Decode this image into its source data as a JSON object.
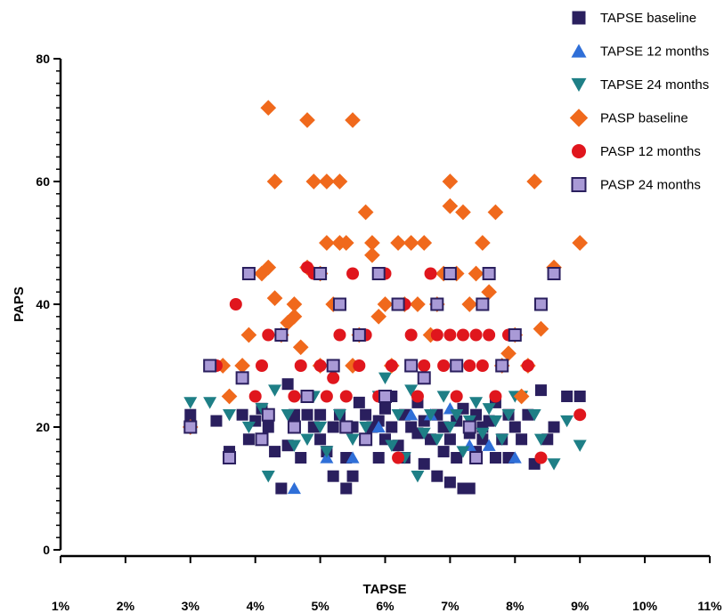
{
  "chart_data": {
    "type": "scatter",
    "title": "",
    "xlabel": "TAPSE",
    "ylabel": "PAPS",
    "xlim": [
      1,
      11
    ],
    "ylim": [
      0,
      80
    ],
    "x_tick_labels": [
      "1%",
      "2%",
      "3%",
      "4%",
      "5%",
      "6%",
      "7%",
      "8%",
      "9%",
      "10%",
      "11%"
    ],
    "y_tick_labels": [
      "0",
      "20",
      "40",
      "60",
      "80"
    ],
    "legend_position": "top-right",
    "grid": false,
    "series": [
      {
        "name": "TAPSE baseline",
        "marker": "square",
        "color": "#2a1f5e",
        "points": [
          [
            3.0,
            22
          ],
          [
            3.0,
            20
          ],
          [
            3.4,
            21
          ],
          [
            3.6,
            16
          ],
          [
            3.8,
            22
          ],
          [
            3.9,
            18
          ],
          [
            4.0,
            21
          ],
          [
            4.1,
            23
          ],
          [
            4.2,
            20
          ],
          [
            4.3,
            16
          ],
          [
            4.4,
            10
          ],
          [
            4.5,
            17
          ],
          [
            4.5,
            27
          ],
          [
            4.6,
            22
          ],
          [
            4.7,
            15
          ],
          [
            4.8,
            22
          ],
          [
            4.9,
            20
          ],
          [
            5.0,
            22
          ],
          [
            5.0,
            18
          ],
          [
            5.1,
            16
          ],
          [
            5.2,
            12
          ],
          [
            5.2,
            20
          ],
          [
            5.3,
            22
          ],
          [
            5.4,
            10
          ],
          [
            5.4,
            15
          ],
          [
            5.5,
            12
          ],
          [
            5.5,
            20
          ],
          [
            5.6,
            24
          ],
          [
            5.7,
            18
          ],
          [
            5.7,
            22
          ],
          [
            5.8,
            20
          ],
          [
            5.9,
            15
          ],
          [
            5.9,
            21
          ],
          [
            6.0,
            18
          ],
          [
            6.0,
            23
          ],
          [
            6.1,
            20
          ],
          [
            6.1,
            25
          ],
          [
            6.2,
            17
          ],
          [
            6.3,
            22
          ],
          [
            6.3,
            15
          ],
          [
            6.4,
            20
          ],
          [
            6.5,
            19
          ],
          [
            6.5,
            24
          ],
          [
            6.6,
            21
          ],
          [
            6.6,
            14
          ],
          [
            6.7,
            18
          ],
          [
            6.8,
            22
          ],
          [
            6.8,
            12
          ],
          [
            6.9,
            16
          ],
          [
            6.9,
            20
          ],
          [
            7.0,
            18
          ],
          [
            7.0,
            11
          ],
          [
            7.1,
            21
          ],
          [
            7.1,
            15
          ],
          [
            7.2,
            10
          ],
          [
            7.2,
            23
          ],
          [
            7.3,
            19
          ],
          [
            7.3,
            10
          ],
          [
            7.4,
            22
          ],
          [
            7.4,
            16
          ],
          [
            7.5,
            20
          ],
          [
            7.5,
            18
          ],
          [
            7.6,
            21
          ],
          [
            7.7,
            15
          ],
          [
            7.7,
            24
          ],
          [
            7.8,
            18
          ],
          [
            7.9,
            15
          ],
          [
            7.9,
            22
          ],
          [
            8.0,
            20
          ],
          [
            8.1,
            18
          ],
          [
            8.2,
            22
          ],
          [
            8.3,
            14
          ],
          [
            8.4,
            26
          ],
          [
            8.5,
            18
          ],
          [
            8.6,
            20
          ],
          [
            8.8,
            25
          ],
          [
            9.0,
            25
          ]
        ]
      },
      {
        "name": "TAPSE 12 months",
        "marker": "triangle-up",
        "color": "#2f6fd8",
        "points": [
          [
            4.6,
            10
          ],
          [
            5.1,
            15
          ],
          [
            5.5,
            15
          ],
          [
            5.9,
            20
          ],
          [
            6.4,
            22
          ],
          [
            6.7,
            22
          ],
          [
            7.0,
            23
          ],
          [
            7.3,
            17
          ],
          [
            7.6,
            17
          ],
          [
            8.0,
            15
          ]
        ]
      },
      {
        "name": "TAPSE 24 months",
        "marker": "triangle-down",
        "color": "#1e7f86",
        "points": [
          [
            3.0,
            24
          ],
          [
            3.3,
            24
          ],
          [
            3.6,
            22
          ],
          [
            3.9,
            20
          ],
          [
            4.1,
            23
          ],
          [
            4.2,
            12
          ],
          [
            4.3,
            26
          ],
          [
            4.5,
            22
          ],
          [
            4.6,
            17
          ],
          [
            4.8,
            18
          ],
          [
            4.9,
            25
          ],
          [
            5.0,
            20
          ],
          [
            5.1,
            16
          ],
          [
            5.3,
            22
          ],
          [
            5.5,
            18
          ],
          [
            5.7,
            20
          ],
          [
            5.9,
            25
          ],
          [
            6.0,
            28
          ],
          [
            6.1,
            17
          ],
          [
            6.2,
            22
          ],
          [
            6.3,
            15
          ],
          [
            6.4,
            26
          ],
          [
            6.5,
            12
          ],
          [
            6.6,
            19
          ],
          [
            6.7,
            22
          ],
          [
            6.8,
            18
          ],
          [
            6.9,
            25
          ],
          [
            7.0,
            20
          ],
          [
            7.1,
            22
          ],
          [
            7.2,
            16
          ],
          [
            7.3,
            21
          ],
          [
            7.4,
            24
          ],
          [
            7.5,
            19
          ],
          [
            7.6,
            23
          ],
          [
            7.7,
            21
          ],
          [
            7.8,
            18
          ],
          [
            7.9,
            22
          ],
          [
            8.0,
            25
          ],
          [
            8.1,
            25
          ],
          [
            8.3,
            22
          ],
          [
            8.4,
            18
          ],
          [
            8.6,
            14
          ],
          [
            8.8,
            21
          ],
          [
            9.0,
            17
          ]
        ]
      },
      {
        "name": "PASP baseline",
        "marker": "diamond",
        "color": "#f0691c",
        "points": [
          [
            3.0,
            20
          ],
          [
            3.5,
            30
          ],
          [
            3.6,
            25
          ],
          [
            3.8,
            30
          ],
          [
            3.9,
            35
          ],
          [
            4.1,
            45
          ],
          [
            4.2,
            46
          ],
          [
            4.2,
            72
          ],
          [
            4.3,
            60
          ],
          [
            4.3,
            41
          ],
          [
            4.4,
            35
          ],
          [
            4.5,
            37
          ],
          [
            4.6,
            38
          ],
          [
            4.6,
            40
          ],
          [
            4.7,
            33
          ],
          [
            4.8,
            70
          ],
          [
            4.8,
            46
          ],
          [
            4.9,
            60
          ],
          [
            5.0,
            45
          ],
          [
            5.0,
            30
          ],
          [
            5.1,
            60
          ],
          [
            5.1,
            50
          ],
          [
            5.2,
            40
          ],
          [
            5.3,
            50
          ],
          [
            5.3,
            60
          ],
          [
            5.4,
            50
          ],
          [
            5.5,
            70
          ],
          [
            5.5,
            30
          ],
          [
            5.6,
            35
          ],
          [
            5.7,
            55
          ],
          [
            5.8,
            48
          ],
          [
            5.8,
            50
          ],
          [
            5.9,
            38
          ],
          [
            6.0,
            40
          ],
          [
            6.1,
            30
          ],
          [
            6.2,
            50
          ],
          [
            6.3,
            40
          ],
          [
            6.4,
            50
          ],
          [
            6.5,
            40
          ],
          [
            6.6,
            50
          ],
          [
            6.7,
            35
          ],
          [
            6.8,
            40
          ],
          [
            6.9,
            45
          ],
          [
            7.0,
            56
          ],
          [
            7.0,
            60
          ],
          [
            7.1,
            45
          ],
          [
            7.2,
            55
          ],
          [
            7.3,
            40
          ],
          [
            7.4,
            45
          ],
          [
            7.5,
            50
          ],
          [
            7.6,
            42
          ],
          [
            7.7,
            55
          ],
          [
            7.8,
            30
          ],
          [
            7.9,
            32
          ],
          [
            8.0,
            35
          ],
          [
            8.1,
            25
          ],
          [
            8.2,
            30
          ],
          [
            8.3,
            60
          ],
          [
            8.4,
            36
          ],
          [
            8.6,
            46
          ],
          [
            9.0,
            50
          ]
        ]
      },
      {
        "name": "PASP  12 months",
        "marker": "circle",
        "color": "#e0161d",
        "points": [
          [
            3.0,
            20
          ],
          [
            3.4,
            30
          ],
          [
            3.6,
            15
          ],
          [
            3.7,
            40
          ],
          [
            3.8,
            28
          ],
          [
            4.0,
            25
          ],
          [
            4.1,
            30
          ],
          [
            4.2,
            35
          ],
          [
            4.4,
            35
          ],
          [
            4.6,
            25
          ],
          [
            4.7,
            30
          ],
          [
            4.8,
            46
          ],
          [
            4.9,
            45
          ],
          [
            5.0,
            30
          ],
          [
            5.1,
            25
          ],
          [
            5.2,
            28
          ],
          [
            5.3,
            35
          ],
          [
            5.4,
            25
          ],
          [
            5.5,
            45
          ],
          [
            5.6,
            30
          ],
          [
            5.7,
            35
          ],
          [
            5.9,
            25
          ],
          [
            6.0,
            45
          ],
          [
            6.1,
            30
          ],
          [
            6.2,
            15
          ],
          [
            6.3,
            40
          ],
          [
            6.4,
            35
          ],
          [
            6.5,
            25
          ],
          [
            6.6,
            30
          ],
          [
            6.7,
            45
          ],
          [
            6.8,
            35
          ],
          [
            6.9,
            30
          ],
          [
            7.0,
            35
          ],
          [
            7.1,
            25
          ],
          [
            7.2,
            35
          ],
          [
            7.3,
            30
          ],
          [
            7.4,
            35
          ],
          [
            7.5,
            30
          ],
          [
            7.6,
            35
          ],
          [
            7.7,
            25
          ],
          [
            7.8,
            30
          ],
          [
            7.9,
            35
          ],
          [
            8.0,
            35
          ],
          [
            8.2,
            30
          ],
          [
            8.4,
            15
          ],
          [
            8.6,
            45
          ],
          [
            9.0,
            22
          ]
        ]
      },
      {
        "name": "PASP 24 months",
        "marker": "square",
        "color": "#a99ad6",
        "points": [
          [
            3.0,
            20
          ],
          [
            3.3,
            30
          ],
          [
            3.6,
            15
          ],
          [
            3.8,
            28
          ],
          [
            3.9,
            45
          ],
          [
            4.1,
            18
          ],
          [
            4.2,
            22
          ],
          [
            4.4,
            35
          ],
          [
            4.6,
            20
          ],
          [
            4.8,
            25
          ],
          [
            5.0,
            45
          ],
          [
            5.2,
            30
          ],
          [
            5.3,
            40
          ],
          [
            5.4,
            20
          ],
          [
            5.6,
            35
          ],
          [
            5.7,
            18
          ],
          [
            5.9,
            45
          ],
          [
            6.0,
            25
          ],
          [
            6.2,
            40
          ],
          [
            6.4,
            30
          ],
          [
            6.6,
            28
          ],
          [
            6.8,
            40
          ],
          [
            7.0,
            45
          ],
          [
            7.1,
            30
          ],
          [
            7.3,
            20
          ],
          [
            7.4,
            15
          ],
          [
            7.5,
            40
          ],
          [
            7.6,
            45
          ],
          [
            7.8,
            30
          ],
          [
            8.0,
            35
          ],
          [
            8.4,
            40
          ],
          [
            8.6,
            45
          ]
        ]
      }
    ]
  }
}
